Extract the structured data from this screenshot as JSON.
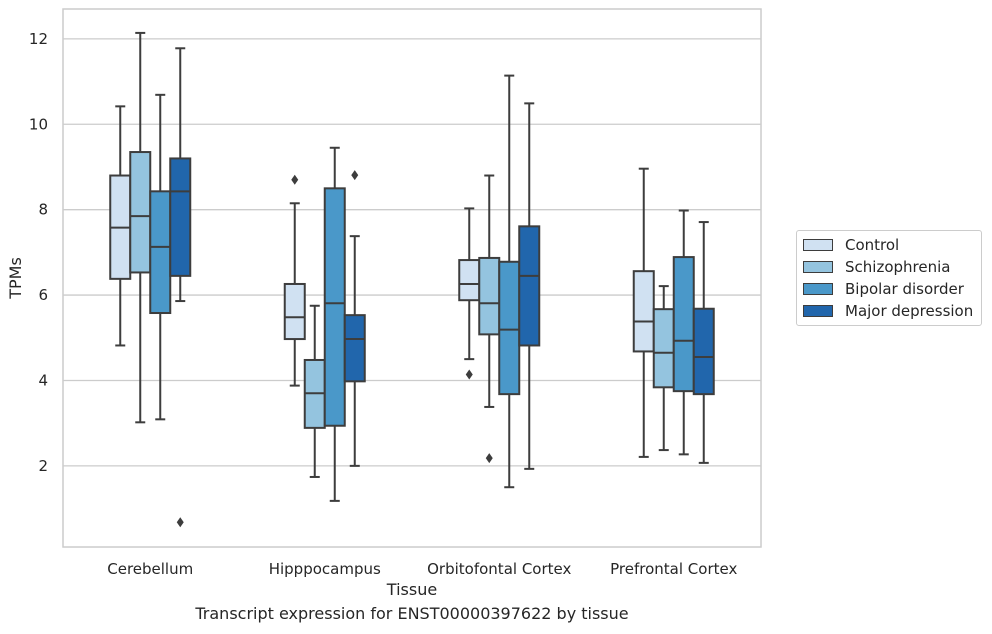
{
  "chart_data": {
    "type": "box",
    "title": "",
    "caption": "Transcript expression for ENST00000397622 by tissue",
    "xlabel": "Tissue",
    "ylabel": "TPMs",
    "ylim": [
      0.1,
      12.7
    ],
    "yticks": [
      "2",
      "4",
      "6",
      "8",
      "10",
      "12"
    ],
    "grid": "horizontal",
    "legend_position": "right",
    "categories": [
      "Cerebellum",
      "Hipppocampus",
      "Orbitofontal Cortex",
      "Prefrontal Cortex"
    ],
    "series": [
      {
        "name": "Control",
        "color": "#d0e1f2",
        "boxes": [
          {
            "whisker_low": 4.82,
            "q1": 6.38,
            "median": 7.58,
            "q3": 8.8,
            "whisker_high": 10.42,
            "outliers": []
          },
          {
            "whisker_low": 3.88,
            "q1": 4.97,
            "median": 5.48,
            "q3": 6.26,
            "whisker_high": 8.15,
            "outliers": [
              8.7
            ]
          },
          {
            "whisker_low": 4.5,
            "q1": 5.88,
            "median": 6.26,
            "q3": 6.82,
            "whisker_high": 8.03,
            "outliers": [
              4.14
            ]
          },
          {
            "whisker_low": 2.21,
            "q1": 4.68,
            "median": 5.38,
            "q3": 6.56,
            "whisker_high": 8.96,
            "outliers": []
          }
        ]
      },
      {
        "name": "Schizophrenia",
        "color": "#94c4df",
        "boxes": [
          {
            "whisker_low": 3.02,
            "q1": 6.53,
            "median": 7.85,
            "q3": 9.35,
            "whisker_high": 12.14,
            "outliers": []
          },
          {
            "whisker_low": 1.74,
            "q1": 2.89,
            "median": 3.7,
            "q3": 4.48,
            "whisker_high": 5.75,
            "outliers": []
          },
          {
            "whisker_low": 3.38,
            "q1": 5.08,
            "median": 5.81,
            "q3": 6.87,
            "whisker_high": 8.8,
            "outliers": [
              2.18
            ]
          },
          {
            "whisker_low": 2.37,
            "q1": 3.84,
            "median": 4.65,
            "q3": 5.67,
            "whisker_high": 6.21,
            "outliers": []
          }
        ]
      },
      {
        "name": "Bipolar disorder",
        "color": "#4a98c9",
        "boxes": [
          {
            "whisker_low": 3.09,
            "q1": 5.58,
            "median": 7.13,
            "q3": 8.43,
            "whisker_high": 10.69,
            "outliers": []
          },
          {
            "whisker_low": 1.18,
            "q1": 2.94,
            "median": 5.81,
            "q3": 8.5,
            "whisker_high": 9.45,
            "outliers": []
          },
          {
            "whisker_low": 1.5,
            "q1": 3.68,
            "median": 5.19,
            "q3": 6.78,
            "whisker_high": 11.14,
            "outliers": []
          },
          {
            "whisker_low": 2.27,
            "q1": 3.75,
            "median": 4.93,
            "q3": 6.89,
            "whisker_high": 7.98,
            "outliers": []
          }
        ]
      },
      {
        "name": "Major depression",
        "color": "#2166ac",
        "boxes": [
          {
            "whisker_low": 5.86,
            "q1": 6.45,
            "median": 8.43,
            "q3": 9.2,
            "whisker_high": 11.78,
            "outliers": [
              0.68
            ]
          },
          {
            "whisker_low": 2.0,
            "q1": 3.98,
            "median": 4.97,
            "q3": 5.53,
            "whisker_high": 7.38,
            "outliers": [
              8.81
            ]
          },
          {
            "whisker_low": 1.93,
            "q1": 4.82,
            "median": 6.45,
            "q3": 7.61,
            "whisker_high": 10.49,
            "outliers": []
          },
          {
            "whisker_low": 2.07,
            "q1": 3.68,
            "median": 4.55,
            "q3": 5.68,
            "whisker_high": 7.71,
            "outliers": []
          }
        ]
      }
    ]
  }
}
